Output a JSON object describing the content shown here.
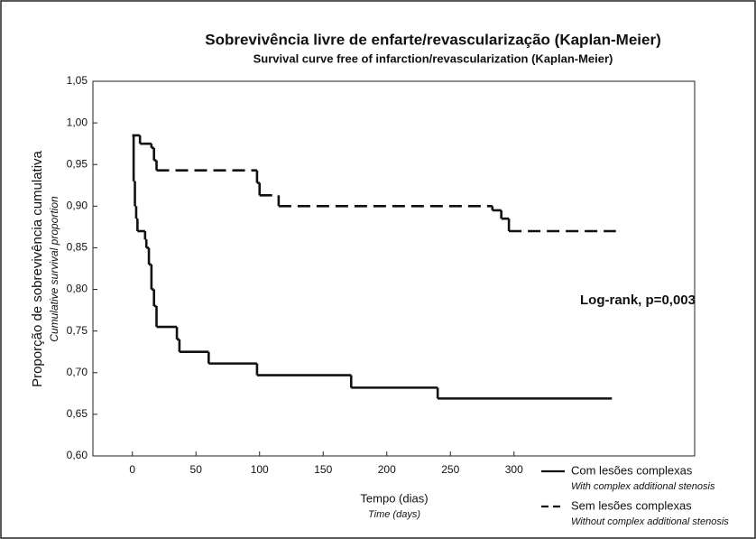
{
  "chart_data": {
    "type": "step",
    "title": "Sobrevivência livre de enfarte/revascularização (Kaplan-Meier)",
    "subtitle": "Survival curve free of infarction/revascularization (Kaplan-Meier)",
    "x_label": "Tempo (dias)",
    "x_label_en": "Time (days)",
    "y_label": "Proporção de sobrevivência cumulativa",
    "y_label_en": "Cumulative survival proportion",
    "annotation": "Log-rank, p=0,003",
    "xlim": [
      -31,
      442
    ],
    "xticks": [
      0,
      50,
      100,
      150,
      200,
      250,
      300
    ],
    "ylim": [
      0.6,
      1.05
    ],
    "yticks": [
      {
        "value": 0.6,
        "label": "0,60"
      },
      {
        "value": 0.65,
        "label": "0,65"
      },
      {
        "value": 0.7,
        "label": "0,70"
      },
      {
        "value": 0.75,
        "label": "0,75"
      },
      {
        "value": 0.8,
        "label": "0,80"
      },
      {
        "value": 0.85,
        "label": "0,85"
      },
      {
        "value": 0.9,
        "label": "0,90"
      },
      {
        "value": 0.95,
        "label": "0,95"
      },
      {
        "value": 1.0,
        "label": "1,00"
      },
      {
        "value": 1.05,
        "label": "1,05"
      }
    ],
    "series": [
      {
        "name": "Com lesões complexas",
        "description": "With complex additional stenosis",
        "color": "#111111",
        "dash": "solid",
        "x": [
          0,
          1,
          2,
          3,
          4,
          10,
          11,
          13,
          15,
          17,
          19,
          35,
          37,
          60,
          98,
          172,
          240,
          377
        ],
        "values": [
          0.985,
          0.93,
          0.9,
          0.885,
          0.87,
          0.86,
          0.85,
          0.83,
          0.8,
          0.78,
          0.755,
          0.74,
          0.725,
          0.711,
          0.697,
          0.682,
          0.669,
          0.669
        ]
      },
      {
        "name": "Sem lesões complexas",
        "description": "Without complex additional stenosis",
        "color": "#111111",
        "dash": "dashed",
        "x": [
          0,
          6,
          15,
          17,
          19,
          98,
          100,
          115,
          283,
          290,
          296,
          380
        ],
        "values": [
          0.985,
          0.975,
          0.97,
          0.955,
          0.943,
          0.928,
          0.913,
          0.9,
          0.895,
          0.885,
          0.87,
          0.87
        ]
      }
    ]
  }
}
